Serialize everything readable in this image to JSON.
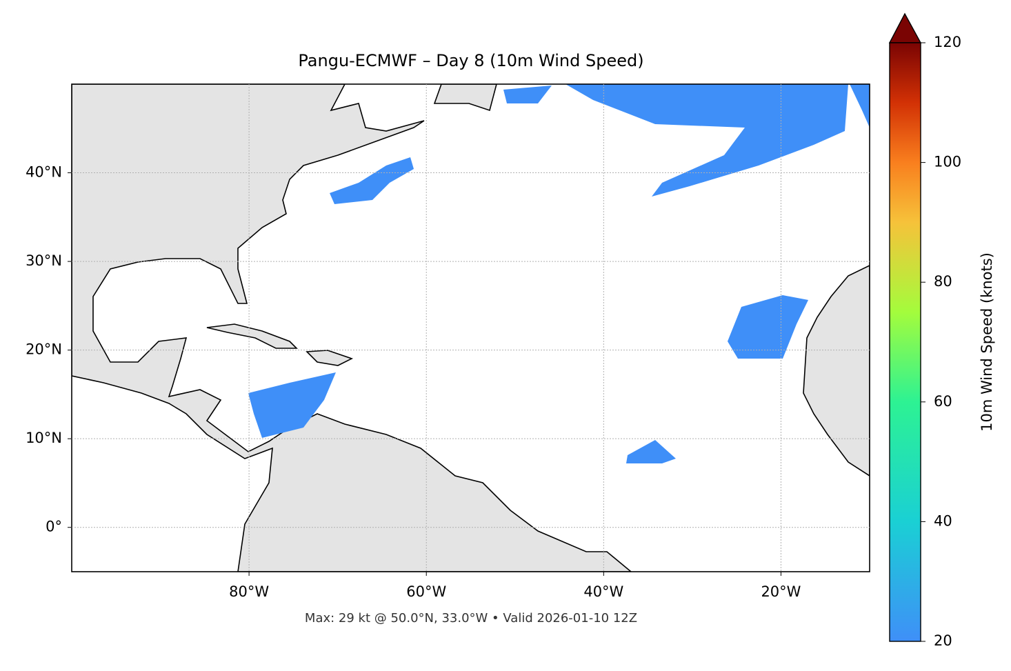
{
  "chart_data": {
    "type": "map",
    "title": "Pangu-ECMWF – Day 8 (10m Wind Speed)",
    "caption": "Max: 29 kt @ 50.0°N, 33.0°W • Valid 2026-01-10 12Z",
    "xlim": [
      -100,
      -10
    ],
    "ylim": [
      -5,
      50
    ],
    "xticks": [
      {
        "value": -80,
        "label": "80°W"
      },
      {
        "value": -60,
        "label": "60°W"
      },
      {
        "value": -40,
        "label": "40°W"
      },
      {
        "value": -20,
        "label": "20°W"
      }
    ],
    "yticks": [
      {
        "value": 0,
        "label": "0°"
      },
      {
        "value": 10,
        "label": "10°N"
      },
      {
        "value": 20,
        "label": "20°N"
      },
      {
        "value": 30,
        "label": "30°N"
      },
      {
        "value": 40,
        "label": "40°N"
      }
    ],
    "grid": true,
    "colorbar": {
      "label": "10m Wind Speed (knots)",
      "lim": [
        20,
        120
      ],
      "ticks": [
        20,
        40,
        60,
        80,
        100,
        120
      ]
    }
  }
}
